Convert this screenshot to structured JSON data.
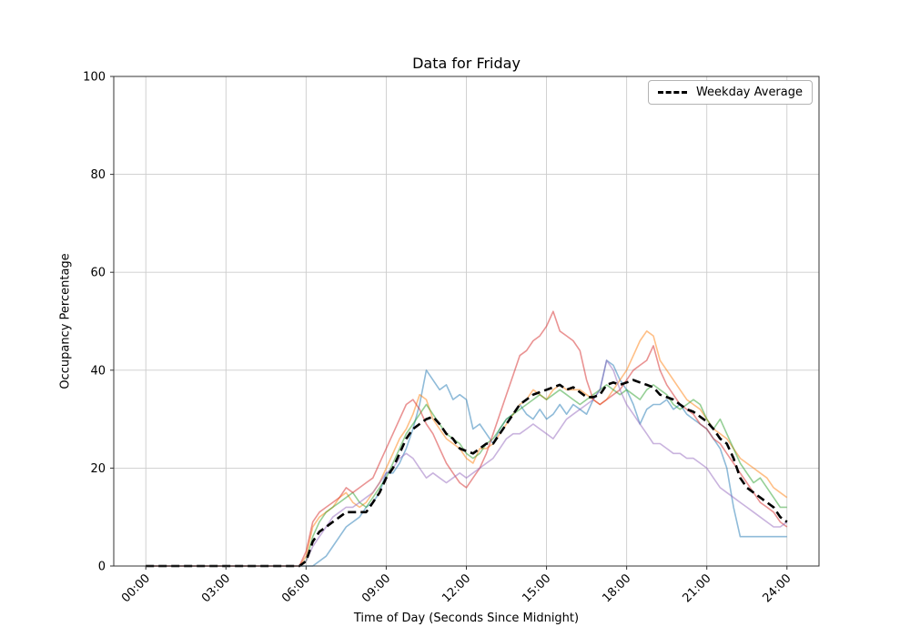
{
  "chart_data": {
    "type": "line",
    "title": "Data for Friday",
    "xlabel": "Time of Day (Seconds Since Midnight)",
    "ylabel": "Occupancy Percentage",
    "grid": true,
    "grid_color": "#cccccc",
    "legend_position": "upper right",
    "legend_entries": [
      "Weekday Average"
    ],
    "xlim": [
      -1.2,
      25.2
    ],
    "ylim": [
      0,
      100
    ],
    "x_units": "hours",
    "x_start": 0,
    "x_step": 0.25,
    "x_ticks": {
      "positions": [
        0,
        3,
        6,
        9,
        12,
        15,
        18,
        21,
        24
      ],
      "labels": [
        "00:00",
        "03:00",
        "06:00",
        "09:00",
        "12:00",
        "15:00",
        "18:00",
        "21:00",
        "24:00"
      ]
    },
    "y_ticks": [
      0,
      20,
      40,
      60,
      80,
      100
    ],
    "series": [
      {
        "name": "line-1",
        "color": "#1f77b4",
        "alpha": 0.5,
        "style": "solid",
        "width": 1.6,
        "values": [
          0,
          0,
          0,
          0,
          0,
          0,
          0,
          0,
          0,
          0,
          0,
          0,
          0,
          0,
          0,
          0,
          0,
          0,
          0,
          0,
          0,
          0,
          0,
          0,
          0,
          0,
          1,
          2,
          4,
          6,
          8,
          9,
          10,
          12,
          13,
          15,
          19,
          19,
          21,
          24,
          28,
          33,
          40,
          38,
          36,
          37,
          34,
          35,
          34,
          28,
          29,
          27,
          25,
          28,
          30,
          31,
          33,
          31,
          30,
          32,
          30,
          31,
          33,
          31,
          33,
          32,
          31,
          34,
          36,
          42,
          41,
          38,
          36,
          33,
          29,
          32,
          33,
          33,
          34,
          32,
          33,
          31,
          30,
          29,
          28,
          26,
          24,
          20,
          12,
          6,
          6,
          6,
          6,
          6,
          6,
          6,
          6
        ]
      },
      {
        "name": "line-2",
        "color": "#ff7f0e",
        "alpha": 0.5,
        "style": "solid",
        "width": 1.6,
        "values": [
          0,
          0,
          0,
          0,
          0,
          0,
          0,
          0,
          0,
          0,
          0,
          0,
          0,
          0,
          0,
          0,
          0,
          0,
          0,
          0,
          0,
          0,
          0,
          0,
          2,
          8,
          10,
          11,
          12,
          14,
          15,
          13,
          12,
          13,
          15,
          17,
          20,
          23,
          26,
          28,
          31,
          35,
          34,
          30,
          28,
          26,
          25,
          24,
          22,
          21,
          24,
          24,
          25,
          27,
          29,
          31,
          33,
          34,
          36,
          35,
          34,
          36,
          37,
          36,
          36,
          36,
          35,
          34,
          33,
          34,
          36,
          38,
          40,
          43,
          46,
          48,
          47,
          42,
          40,
          38,
          36,
          34,
          33,
          32,
          30,
          28,
          27,
          26,
          24,
          22,
          21,
          20,
          19,
          18,
          16,
          15,
          14
        ]
      },
      {
        "name": "line-3",
        "color": "#2ca02c",
        "alpha": 0.5,
        "style": "solid",
        "width": 1.6,
        "values": [
          0,
          0,
          0,
          0,
          0,
          0,
          0,
          0,
          0,
          0,
          0,
          0,
          0,
          0,
          0,
          0,
          0,
          0,
          0,
          0,
          0,
          0,
          0,
          0,
          1,
          6,
          9,
          11,
          12,
          13,
          14,
          15,
          13,
          12,
          14,
          16,
          18,
          21,
          24,
          27,
          29,
          31,
          33,
          31,
          29,
          27,
          26,
          25,
          23,
          22,
          23,
          25,
          26,
          28,
          30,
          31,
          32,
          33,
          34,
          35,
          34,
          35,
          36,
          35,
          34,
          33,
          34,
          35,
          36,
          37,
          36,
          35,
          36,
          35,
          34,
          36,
          37,
          36,
          35,
          33,
          32,
          33,
          34,
          33,
          30,
          28,
          30,
          27,
          24,
          21,
          19,
          17,
          18,
          16,
          14,
          12,
          12
        ]
      },
      {
        "name": "line-4",
        "color": "#d62728",
        "alpha": 0.5,
        "style": "solid",
        "width": 1.6,
        "values": [
          0,
          0,
          0,
          0,
          0,
          0,
          0,
          0,
          0,
          0,
          0,
          0,
          0,
          0,
          0,
          0,
          0,
          0,
          0,
          0,
          0,
          0,
          0,
          0,
          3,
          9,
          11,
          12,
          13,
          14,
          16,
          15,
          16,
          17,
          18,
          21,
          24,
          27,
          30,
          33,
          34,
          32,
          29,
          27,
          24,
          21,
          19,
          17,
          16,
          18,
          20,
          23,
          27,
          31,
          35,
          39,
          43,
          44,
          46,
          47,
          49,
          52,
          48,
          47,
          46,
          44,
          38,
          34,
          33,
          34,
          35,
          36,
          38,
          40,
          41,
          42,
          45,
          40,
          37,
          35,
          33,
          32,
          31,
          29,
          28,
          26,
          25,
          23,
          21,
          19,
          17,
          15,
          13,
          12,
          11,
          9,
          8
        ]
      },
      {
        "name": "line-5",
        "color": "#9467bd",
        "alpha": 0.5,
        "style": "solid",
        "width": 1.6,
        "values": [
          0,
          0,
          0,
          0,
          0,
          0,
          0,
          0,
          0,
          0,
          0,
          0,
          0,
          0,
          0,
          0,
          0,
          0,
          0,
          0,
          0,
          0,
          0,
          0,
          1,
          4,
          6,
          8,
          10,
          11,
          12,
          12,
          13,
          14,
          15,
          17,
          19,
          20,
          22,
          23,
          22,
          20,
          18,
          19,
          18,
          17,
          18,
          19,
          18,
          19,
          20,
          21,
          22,
          24,
          26,
          27,
          27,
          28,
          29,
          28,
          27,
          26,
          28,
          30,
          31,
          32,
          33,
          34,
          36,
          42,
          40,
          36,
          33,
          31,
          29,
          27,
          25,
          25,
          24,
          23,
          23,
          22,
          22,
          21,
          20,
          18,
          16,
          15,
          14,
          13,
          12,
          11,
          10,
          9,
          8,
          8,
          9
        ]
      },
      {
        "name": "Weekday Average",
        "color": "#000000",
        "alpha": 1,
        "style": "dashed",
        "width": 2.6,
        "values": [
          0,
          0,
          0,
          0,
          0,
          0,
          0,
          0,
          0,
          0,
          0,
          0,
          0,
          0,
          0,
          0,
          0,
          0,
          0,
          0,
          0,
          0,
          0,
          0,
          1,
          5,
          7,
          8,
          9,
          10,
          11,
          11,
          11,
          11,
          13,
          15,
          18,
          20,
          23,
          26,
          28,
          29,
          30,
          30.5,
          29,
          27,
          26,
          24,
          23.5,
          23,
          24,
          25,
          25,
          27,
          29,
          31,
          33,
          34,
          35,
          35.5,
          36,
          36.5,
          37,
          36,
          36.5,
          35.5,
          34.5,
          34.5,
          35,
          37,
          37.5,
          37,
          37.5,
          38,
          37.5,
          37,
          36.5,
          35,
          34.5,
          34,
          33,
          32,
          31.5,
          30.5,
          29.5,
          28,
          26,
          25,
          22,
          18,
          16,
          15,
          14,
          13,
          12,
          10,
          9
        ]
      }
    ]
  }
}
